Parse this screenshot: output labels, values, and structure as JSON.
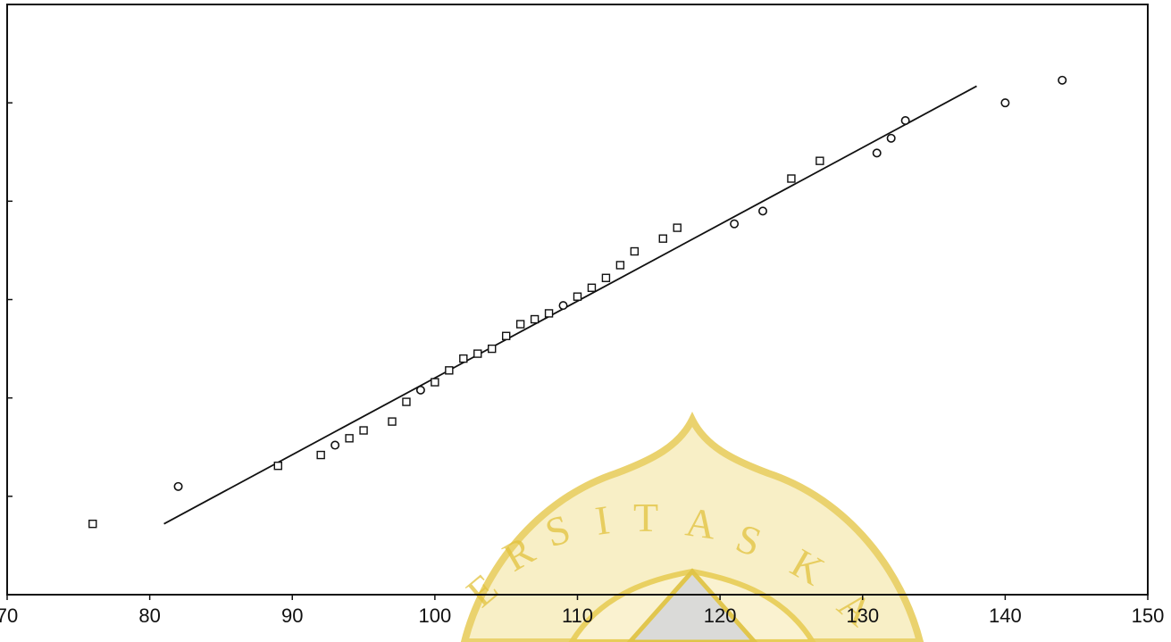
{
  "chart_data": {
    "type": "scatter",
    "title": "",
    "xlabel": "",
    "ylabel": "",
    "xlim": [
      70,
      150
    ],
    "ylim": [
      0,
      6
    ],
    "x_ticks": [
      70,
      80,
      90,
      100,
      110,
      120,
      130,
      140,
      150
    ],
    "x_tick_labels": [
      "70",
      "80",
      "90",
      "100",
      "110",
      "120",
      "130",
      "140",
      "150"
    ],
    "y_ticks": [
      1,
      2,
      3,
      4,
      5
    ],
    "y_tick_labels": [],
    "grid": false,
    "legend": "none",
    "series": [
      {
        "marker": "square",
        "points": [
          [
            76,
            0.72
          ],
          [
            89,
            1.31
          ],
          [
            92,
            1.42
          ],
          [
            94,
            1.59
          ],
          [
            95,
            1.67
          ],
          [
            97,
            1.76
          ],
          [
            98,
            1.96
          ],
          [
            100,
            2.16
          ],
          [
            101,
            2.28
          ],
          [
            102,
            2.4
          ],
          [
            103,
            2.45
          ],
          [
            104,
            2.5
          ],
          [
            105,
            2.63
          ],
          [
            106,
            2.75
          ],
          [
            107,
            2.8
          ],
          [
            108,
            2.86
          ],
          [
            110,
            3.03
          ],
          [
            111,
            3.12
          ],
          [
            112,
            3.22
          ],
          [
            113,
            3.35
          ],
          [
            114,
            3.49
          ],
          [
            116,
            3.62
          ],
          [
            117,
            3.73
          ],
          [
            125,
            4.23
          ],
          [
            127,
            4.41
          ]
        ]
      },
      {
        "marker": "circle",
        "points": [
          [
            82,
            1.1
          ],
          [
            93,
            1.52
          ],
          [
            99,
            2.08
          ],
          [
            109,
            2.94
          ],
          [
            121,
            3.77
          ],
          [
            123,
            3.9
          ],
          [
            131,
            4.49
          ],
          [
            132,
            4.64
          ],
          [
            133,
            4.82
          ],
          [
            140,
            5.0
          ],
          [
            144,
            5.23
          ]
        ]
      }
    ],
    "fit_line": {
      "type": "line",
      "x": [
        81,
        138
      ],
      "y": [
        0.72,
        5.17
      ]
    }
  },
  "watermark": {
    "text": "ERSITAS KA",
    "color": "#e2c23d"
  }
}
